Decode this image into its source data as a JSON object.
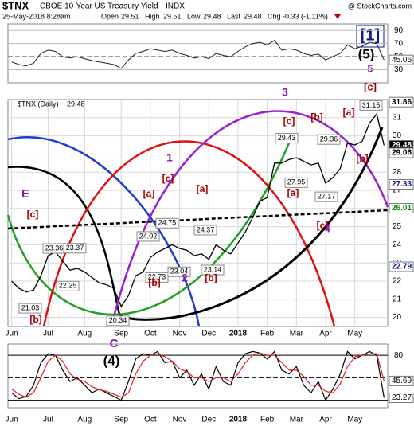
{
  "chart_data": {
    "type": "line",
    "header": {
      "symbol": "$TNX",
      "name": "CBOE 10-Year US Treasury Yield",
      "exchange": "INDX",
      "date": "25-May-2018 8:28am",
      "watermark": "@ StockCharts.com",
      "open_label": "Open",
      "open": 29.51,
      "high_label": "High",
      "high": 29.51,
      "low_label": "Low",
      "low": 29.48,
      "last_label": "Last",
      "last": 29.48,
      "chg_label": "Chg",
      "chg": "-0.33 (-1.11%)"
    },
    "legend": {
      "name": "$TNX (Daily)",
      "value": 29.48
    },
    "categories": [
      "Jun",
      null,
      null,
      null,
      null,
      "Jul",
      null,
      null,
      null,
      null,
      "Aug",
      null,
      null,
      null,
      null,
      "Sep",
      null,
      null,
      null,
      "Oct",
      null,
      null,
      null,
      "Nov",
      null,
      null,
      null,
      "Dec",
      null,
      null,
      null,
      "2018",
      null,
      null,
      null,
      "Feb",
      null,
      null,
      null,
      "Mar",
      null,
      null,
      null,
      "Apr",
      null,
      null,
      null,
      "May",
      null,
      null,
      null,
      null
    ],
    "series": [
      {
        "name": "$TNX",
        "color": "#000000",
        "values": [
          22.0,
          21.6,
          21.4,
          21.5,
          22.3,
          23.4,
          23.6,
          23.1,
          22.6,
          22.7,
          22.5,
          22.2,
          21.9,
          21.8,
          21.6,
          20.6,
          21.2,
          22.3,
          22.5,
          23.3,
          23.6,
          23.8,
          24.0,
          23.8,
          23.7,
          23.4,
          23.5,
          23.2,
          24.0,
          23.7,
          23.5,
          24.1,
          24.7,
          25.5,
          26.4,
          26.6,
          28.5,
          28.5,
          28.7,
          28.8,
          28.6,
          28.4,
          28.5,
          27.4,
          27.7,
          28.2,
          29.6,
          29.5,
          29.7,
          30.7,
          31.2,
          29.48
        ]
      }
    ],
    "ylim": [
      19.5,
      32
    ],
    "yticks": [
      20,
      21,
      22,
      23,
      24,
      25,
      26,
      27,
      28,
      29,
      30,
      31
    ],
    "grid": true,
    "axis_value_labels": [
      31.86,
      29.48,
      29.06,
      27.33,
      26.01,
      22.79
    ],
    "point_labels": [
      31.15,
      29.43,
      29.36,
      27.95,
      27.17,
      24.75,
      24.37,
      24.02,
      23.36,
      23.37,
      22.25,
      22.73,
      23.04,
      23.14,
      21.03,
      20.34
    ],
    "annotations": [
      {
        "text": "[1]",
        "color": "#0a1a8c"
      },
      {
        "text": "(5)",
        "color": "#000000"
      },
      {
        "text": "5",
        "color": "#8b1ab0"
      },
      {
        "text": "[c]",
        "color": "#a00000"
      },
      {
        "text": "3",
        "color": "#8b1ab0"
      },
      {
        "text": "[c]",
        "color": "#a00000"
      },
      {
        "text": "[b]",
        "color": "#a00000"
      },
      {
        "text": "[a]",
        "color": "#a00000"
      },
      {
        "text": "[b]",
        "color": "#a00000"
      },
      {
        "text": "[a]",
        "color": "#a00000"
      },
      {
        "text": "[c]",
        "color": "#a00000"
      },
      {
        "text": "4",
        "color": "#8b1ab0"
      },
      {
        "text": "1",
        "color": "#8b1ab0"
      },
      {
        "text": "[c]",
        "color": "#a00000"
      },
      {
        "text": "[a]",
        "color": "#a00000"
      },
      {
        "text": "[a]",
        "color": "#a00000"
      },
      {
        "text": "2",
        "color": "#8b1ab0"
      },
      {
        "text": "[b]",
        "color": "#a00000"
      },
      {
        "text": "[b]",
        "color": "#a00000"
      },
      {
        "text": "E",
        "color": "#8b1ab0"
      },
      {
        "text": "[c]",
        "color": "#a00000"
      },
      {
        "text": "[b]",
        "color": "#a00000"
      },
      {
        "text": "C",
        "color": "#8b1ab0"
      },
      {
        "text": "(4)",
        "color": "#000000"
      }
    ],
    "top_panel": {
      "ylim": [
        10,
        100
      ],
      "yticks": [
        30,
        50,
        70,
        90
      ],
      "last_label": 45.06,
      "color": "#222222",
      "values": [
        42,
        38,
        36,
        40,
        55,
        60,
        58,
        50,
        48,
        50,
        47,
        44,
        42,
        40,
        38,
        32,
        45,
        55,
        58,
        62,
        60,
        58,
        60,
        55,
        52,
        48,
        50,
        47,
        55,
        52,
        50,
        58,
        65,
        70,
        72,
        68,
        75,
        60,
        62,
        60,
        55,
        52,
        54,
        45,
        50,
        55,
        68,
        62,
        66,
        72,
        70,
        45.06
      ]
    },
    "bottom_panel": {
      "ylim": [
        10,
        95
      ],
      "yticks": [
        80
      ],
      "guides": [
        20,
        50,
        80
      ],
      "last_labels": [
        45.69,
        23.27
      ],
      "series": [
        {
          "color": "#000000",
          "values": [
            30,
            22,
            25,
            40,
            70,
            82,
            80,
            60,
            45,
            50,
            40,
            30,
            35,
            30,
            25,
            20,
            45,
            75,
            82,
            80,
            85,
            70,
            72,
            50,
            60,
            40,
            55,
            35,
            65,
            45,
            40,
            70,
            82,
            85,
            83,
            75,
            85,
            60,
            55,
            65,
            40,
            30,
            45,
            20,
            35,
            55,
            85,
            75,
            80,
            85,
            80,
            23.27
          ]
        },
        {
          "color": "#e02020",
          "values": [
            35,
            28,
            24,
            30,
            50,
            72,
            80,
            72,
            55,
            48,
            45,
            38,
            34,
            32,
            28,
            24,
            30,
            55,
            72,
            80,
            82,
            78,
            72,
            62,
            58,
            50,
            50,
            45,
            50,
            50,
            45,
            55,
            70,
            80,
            83,
            80,
            80,
            70,
            60,
            60,
            52,
            40,
            40,
            32,
            30,
            42,
            65,
            78,
            80,
            82,
            82,
            45.69
          ]
        }
      ]
    }
  }
}
